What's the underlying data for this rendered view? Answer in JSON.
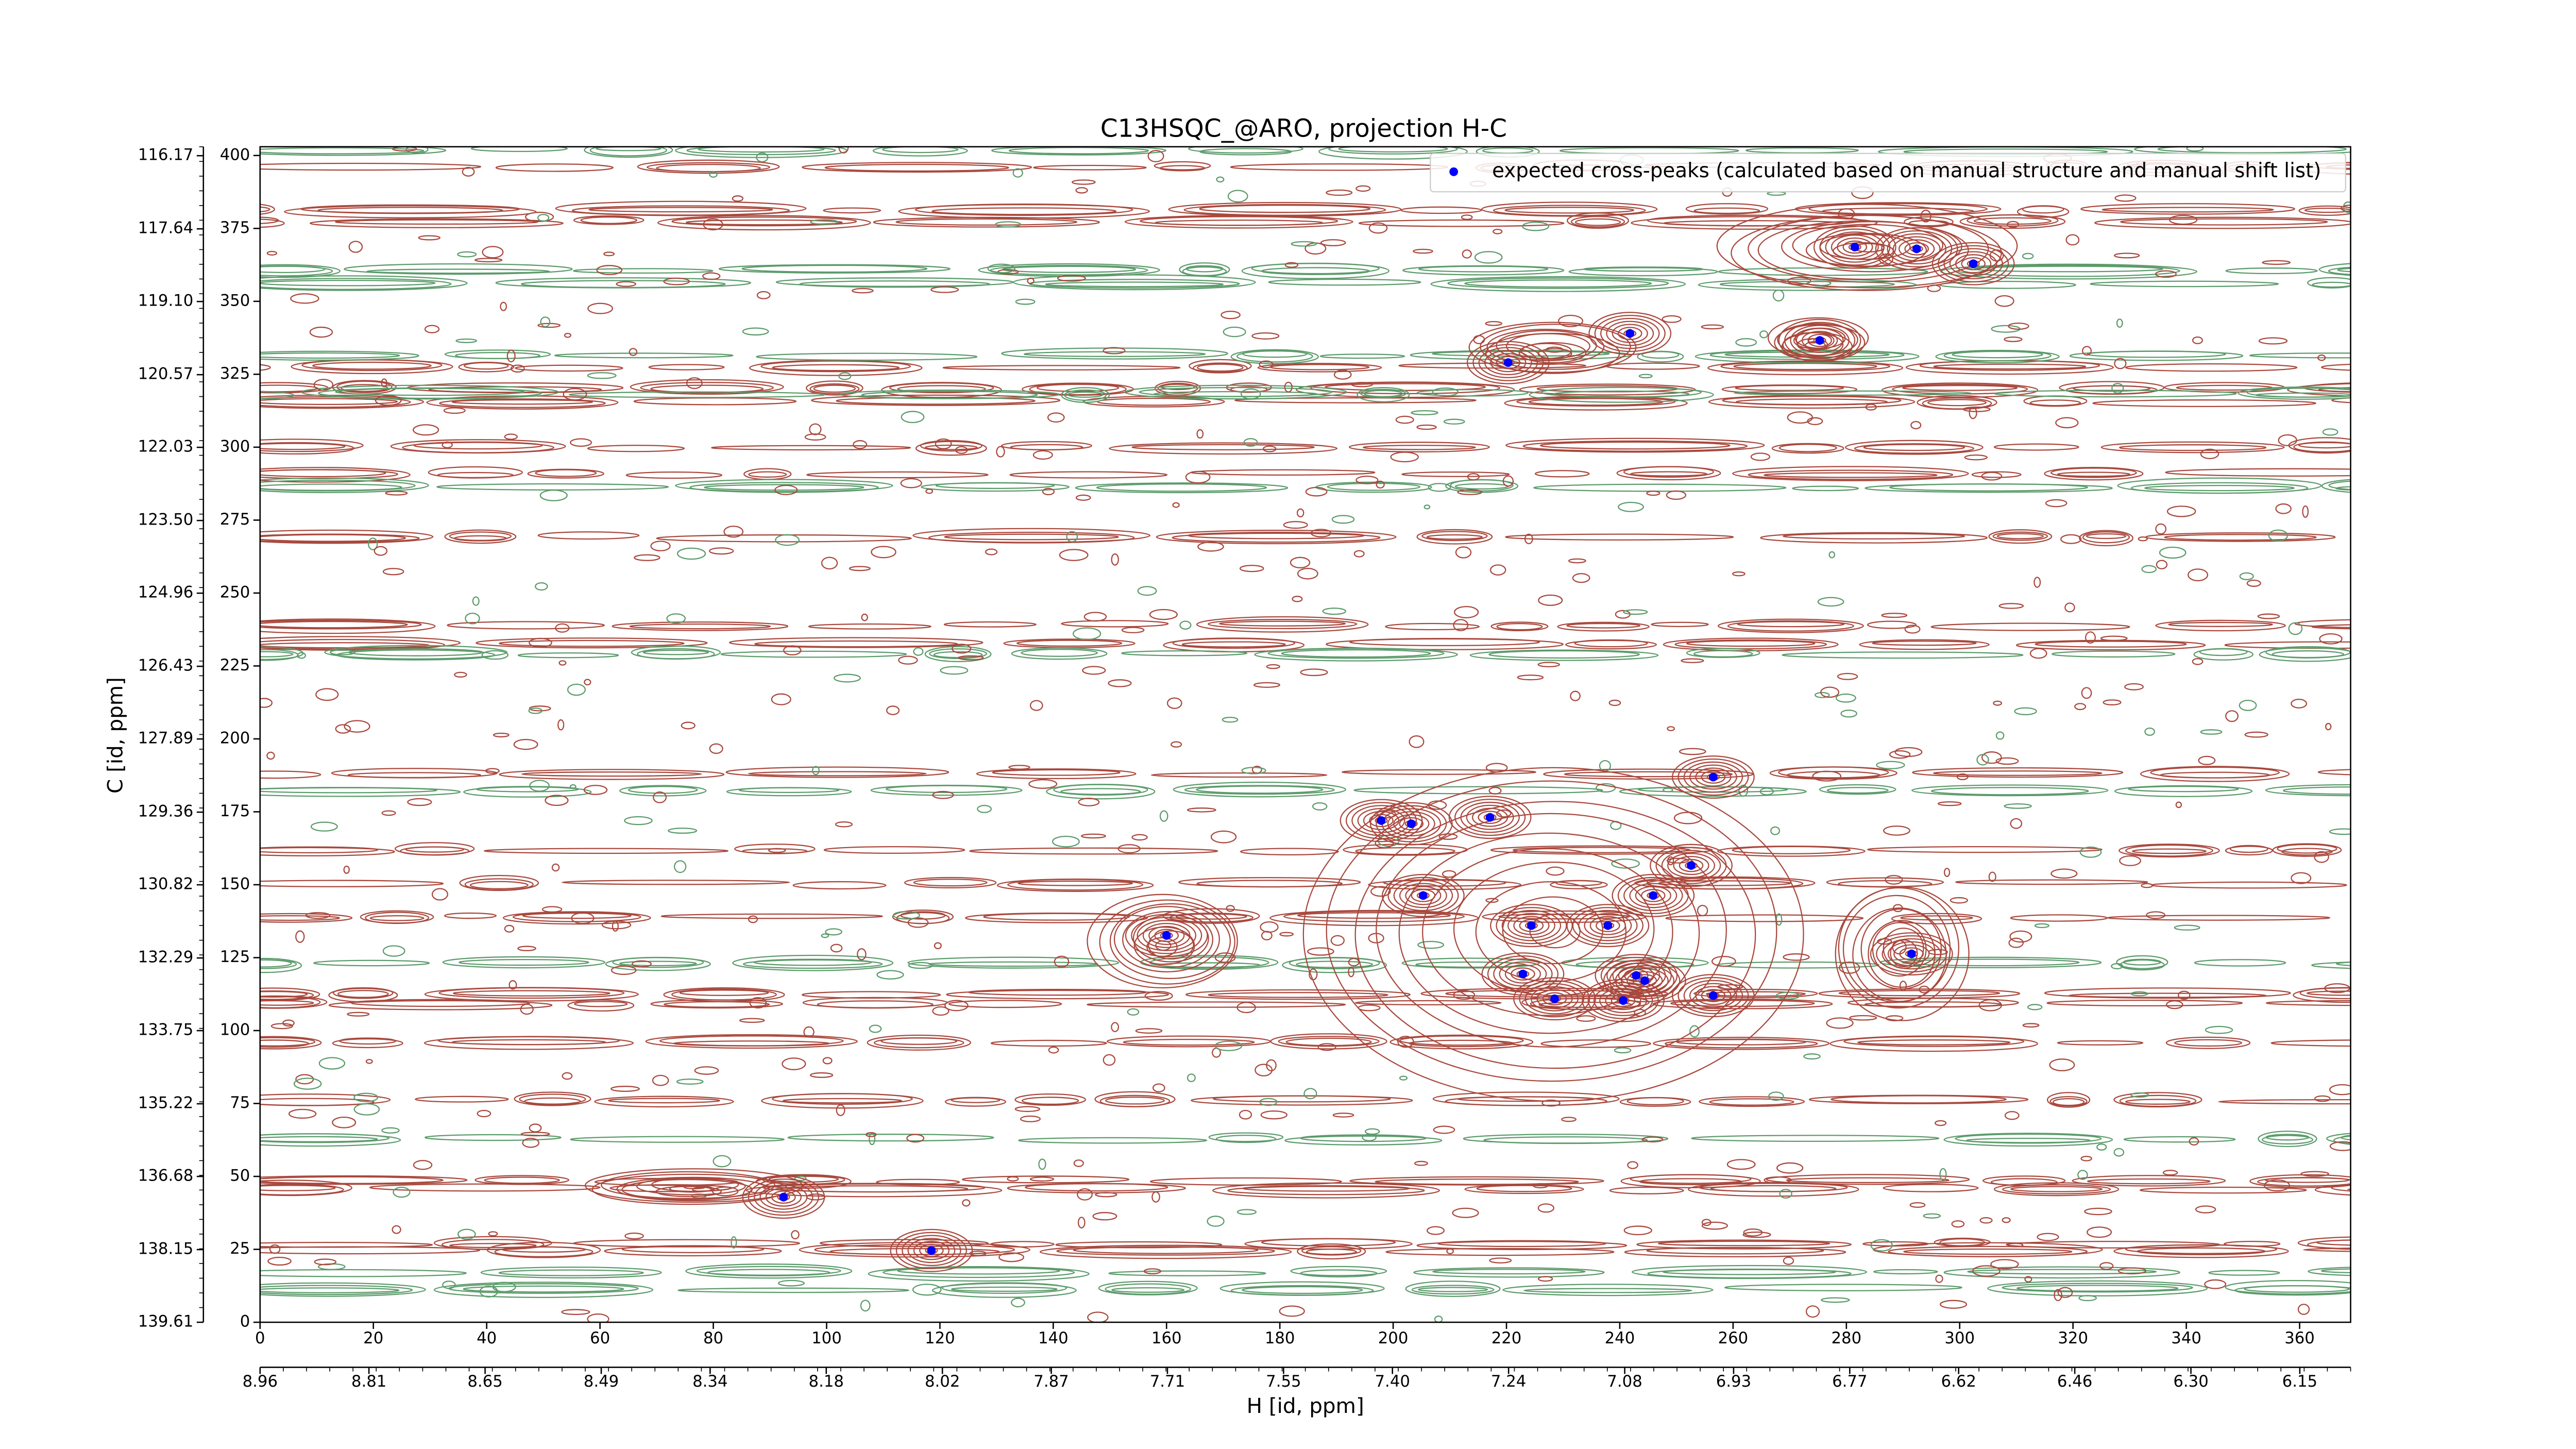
{
  "chart_data": {
    "type": "scatter",
    "title": "C13HSQC_@ARO, projection H-C",
    "x_label": "H [id, ppm]",
    "y_label": "C [id, ppm]",
    "x": [
      220.3,
      241.8,
      275.3,
      281.5,
      292.4,
      302.4,
      256.5,
      197.9,
      203.2,
      217.1,
      252.6,
      205.3,
      245.9,
      224.4,
      237.9,
      160.0,
      291.5,
      222.9,
      242.9,
      244.4,
      228.5,
      240.6,
      256.5,
      92.4,
      118.5
    ],
    "series": [
      {
        "name": "expected cross-peaks (calculated based on manual structure and manual shift list)",
        "color": "#0000ff",
        "values": [
          329.0,
          339.0,
          336.6,
          368.6,
          368.0,
          362.9,
          186.9,
          172.0,
          170.9,
          173.1,
          156.6,
          146.3,
          146.3,
          136.0,
          136.0,
          132.6,
          126.3,
          119.4,
          118.9,
          117.1,
          110.9,
          110.3,
          112.0,
          42.9,
          24.6
        ]
      }
    ],
    "xlim": [
      0,
      369
    ],
    "ylim": [
      0,
      403
    ],
    "xticks": [
      0,
      20,
      40,
      60,
      80,
      100,
      120,
      140,
      160,
      180,
      200,
      220,
      240,
      260,
      280,
      300,
      320,
      340,
      360
    ],
    "yticks": [
      0,
      25,
      50,
      75,
      100,
      125,
      150,
      175,
      200,
      225,
      250,
      275,
      300,
      325,
      350,
      375,
      400
    ],
    "x2lim": [
      8.96,
      6.08
    ],
    "x2ticks": [
      8.96,
      8.81,
      8.65,
      8.49,
      8.34,
      8.18,
      8.02,
      7.87,
      7.71,
      7.55,
      {
        "value": 7.4,
        "label": "7.40"
      },
      7.24,
      7.08,
      6.93,
      6.77,
      6.62,
      6.46,
      {
        "value": 6.3,
        "label": "6.30"
      },
      6.15
    ],
    "y2lim": [
      139.61,
      115.99
    ],
    "y2ticks": [
      139.61,
      138.15,
      136.68,
      135.22,
      133.75,
      132.29,
      130.82,
      129.36,
      127.89,
      126.43,
      124.96,
      {
        "value": 123.5,
        "label": "123.50"
      },
      122.03,
      120.57,
      {
        "value": 119.1,
        "label": "119.10"
      },
      117.64,
      116.17
    ],
    "legend": "upper right"
  }
}
